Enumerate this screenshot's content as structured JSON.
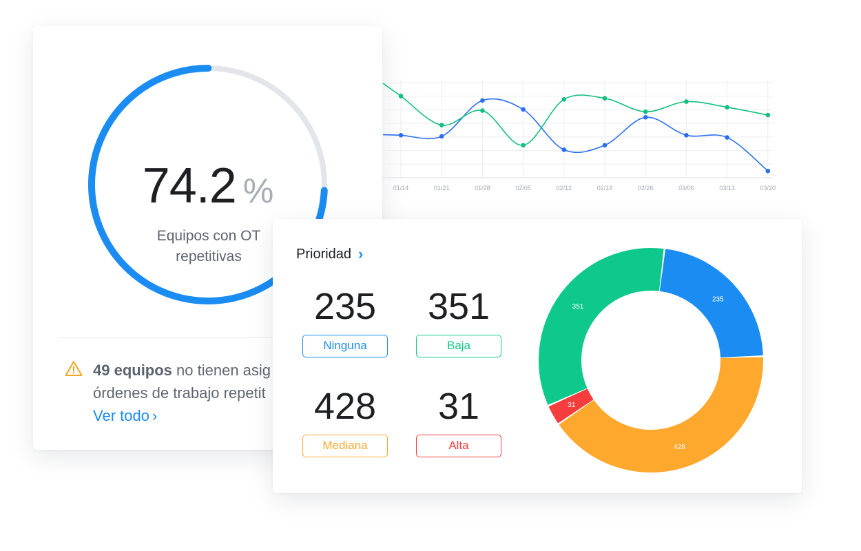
{
  "gauge": {
    "value": "74.2",
    "unit": "%",
    "percent": 74.2,
    "caption_line1": "Equipos con OT",
    "caption_line2": "repetitivas",
    "colors": {
      "progress": "#1b8cf2",
      "track": "#e2e6ea"
    }
  },
  "alert": {
    "count_text": "49 equipos",
    "line1_rest": " no tienen asig",
    "line2": "órdenes de trabajo repetit",
    "link_label": "Ver todo",
    "icon": "warning-triangle-icon"
  },
  "priority": {
    "title": "Prioridad",
    "items": [
      {
        "value": "235",
        "label": "Ninguna",
        "color": "#1b8cf2"
      },
      {
        "value": "351",
        "label": "Baja",
        "color": "#0ec98b"
      },
      {
        "value": "428",
        "label": "Mediana",
        "color": "#ffa82e"
      },
      {
        "value": "31",
        "label": "Alta",
        "color": "#f53d3d"
      }
    ]
  },
  "chart_data": [
    {
      "type": "line",
      "x": [
        "01/14",
        "01/21",
        "01/28",
        "02/05",
        "02/12",
        "02/19",
        "02/26",
        "03/06",
        "03/13",
        "03/20"
      ],
      "series": [
        {
          "color": "#2b6ef5",
          "values": [
            48,
            47,
            79,
            71,
            35,
            39,
            64,
            48,
            46,
            16
          ]
        },
        {
          "color": "#10c07f",
          "values": [
            83,
            57,
            70,
            39,
            80,
            81,
            69,
            78,
            73,
            66
          ]
        }
      ],
      "ylim": [
        10,
        95
      ],
      "grid": true
    },
    {
      "type": "pie",
      "labels": [
        "Ninguna",
        "Mediana",
        "Alta",
        "Baja"
      ],
      "values": [
        235,
        428,
        31,
        351
      ],
      "colors": [
        "#1b8cf2",
        "#ffa82e",
        "#f53d3d",
        "#0ec98b"
      ],
      "donut": true
    }
  ]
}
